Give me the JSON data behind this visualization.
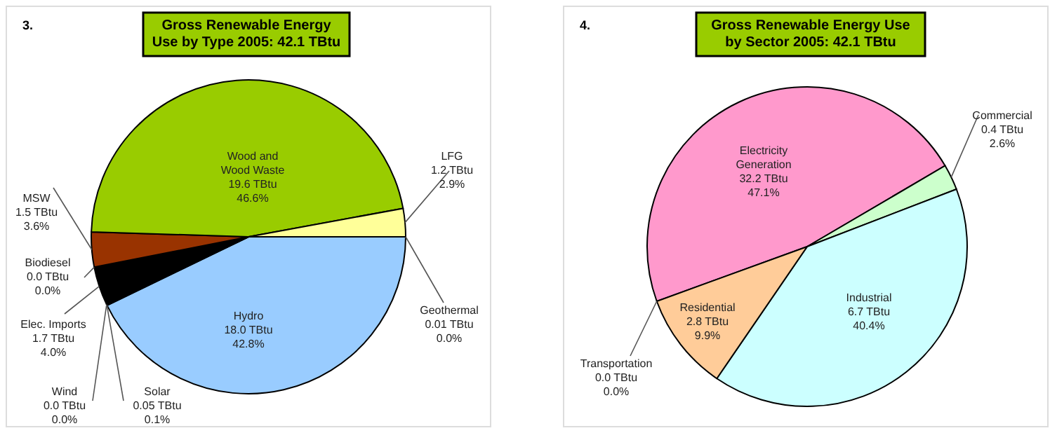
{
  "chart_data": [
    {
      "type": "pie",
      "title": "Gross Renewable Energy\nUse by Type 2005:  42.1 TBtu",
      "annotations": [
        "3."
      ],
      "categories": [
        "Geothermal",
        "Hydro",
        "Solar",
        "Wind",
        "Elec. Imports",
        "Biodiesel",
        "MSW",
        "Wood and\nWood Waste",
        "LFG"
      ],
      "values": [
        0.0,
        42.8,
        0.1,
        0.0,
        4.0,
        0.0,
        3.6,
        46.6,
        2.9
      ],
      "value_labels": [
        "0.01 TBtu\n0.0%",
        "18.0 TBtu\n42.8%",
        "0.05 TBtu\n0.1%",
        "0.0 TBtu\n0.0%",
        "1.7 TBtu\n4.0%",
        "0.0 TBtu\n0.0%",
        "1.5 TBtu\n3.6%",
        "19.6 TBtu\n46.6%",
        "1.2 TBtu\n2.9%"
      ],
      "colors": [
        "#cc6600",
        "#99ccff",
        "#ff9900",
        "#666699",
        "#000000",
        "#336600",
        "#993300",
        "#99cc00",
        "#ffff99"
      ],
      "legend": false
    },
    {
      "type": "pie",
      "title": "Gross Renewable Energy Use\nby Sector  2005:  42.1 TBtu",
      "annotations": [
        "4."
      ],
      "categories": [
        "Electricity\nGeneration",
        "Commercial",
        "Industrial",
        "Residential",
        "Transportation"
      ],
      "values": [
        47.1,
        2.6,
        40.4,
        9.9,
        0.0
      ],
      "value_labels": [
        "32.2 TBtu\n47.1%",
        "0.4 TBtu\n2.6%",
        "6.7 TBtu\n40.4%",
        "2.8 TBtu\n9.9%",
        "0.0 TBtu\n0.0%"
      ],
      "colors": [
        "#ff99cc",
        "#ccffcc",
        "#ccffff",
        "#ffcc99",
        "#996633"
      ],
      "legend": false
    }
  ]
}
